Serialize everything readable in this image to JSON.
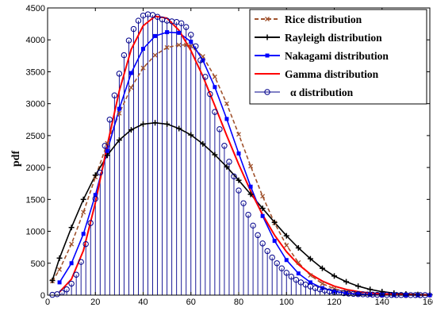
{
  "chart_data": {
    "type": "line",
    "title": "",
    "xlabel": "",
    "ylabel": "pdf",
    "xlim": [
      0,
      160
    ],
    "ylim": [
      0,
      4500
    ],
    "x_ticks": [
      0,
      20,
      40,
      60,
      80,
      100,
      120,
      140,
      160
    ],
    "y_ticks": [
      0,
      500,
      1000,
      1500,
      2000,
      2500,
      3000,
      3500,
      4000,
      4500
    ],
    "grid": false,
    "legend_position": "top-right",
    "series": [
      {
        "name": "Rice distribution",
        "color": "#a0522d",
        "style": "dashed",
        "marker": "x",
        "x": [
          2,
          5,
          10,
          15,
          20,
          25,
          30,
          35,
          40,
          45,
          50,
          55,
          58,
          60,
          65,
          70,
          75,
          80,
          85,
          90,
          95,
          100,
          105,
          110,
          115,
          120,
          125,
          130,
          135,
          140,
          145,
          150,
          155,
          160
        ],
        "y": [
          220,
          400,
          800,
          1300,
          1850,
          2380,
          2850,
          3250,
          3560,
          3760,
          3880,
          3920,
          3920,
          3900,
          3740,
          3420,
          3000,
          2520,
          2020,
          1550,
          1130,
          780,
          510,
          310,
          180,
          100,
          55,
          30,
          15,
          8,
          4,
          2,
          1,
          0
        ]
      },
      {
        "name": "Rayleigh distribution",
        "color": "#000000",
        "style": "solid",
        "marker": "+",
        "x": [
          2,
          5,
          10,
          15,
          20,
          25,
          30,
          35,
          40,
          45,
          50,
          55,
          60,
          65,
          70,
          75,
          80,
          85,
          90,
          95,
          100,
          105,
          110,
          115,
          120,
          125,
          130,
          135,
          140,
          145,
          150,
          155,
          160
        ],
        "y": [
          230,
          580,
          1060,
          1500,
          1880,
          2190,
          2430,
          2590,
          2680,
          2700,
          2680,
          2610,
          2510,
          2370,
          2200,
          2010,
          1800,
          1580,
          1360,
          1140,
          930,
          740,
          570,
          420,
          300,
          210,
          140,
          90,
          55,
          32,
          18,
          10,
          5
        ]
      },
      {
        "name": "Nakagami distribution",
        "color": "#0000ff",
        "style": "solid",
        "marker": "square",
        "x": [
          5,
          10,
          15,
          20,
          25,
          30,
          35,
          40,
          45,
          50,
          55,
          60,
          65,
          70,
          75,
          80,
          85,
          90,
          95,
          100,
          105,
          110,
          115,
          120,
          125,
          130,
          135,
          140,
          145,
          150,
          155,
          160
        ],
        "y": [
          200,
          500,
          960,
          1570,
          2260,
          2920,
          3480,
          3860,
          4060,
          4120,
          4110,
          3970,
          3680,
          3260,
          2760,
          2220,
          1700,
          1240,
          850,
          550,
          340,
          200,
          110,
          60,
          30,
          15,
          8,
          4,
          2,
          1,
          0,
          0
        ]
      },
      {
        "name": "Gamma distribution",
        "color": "#ff0000",
        "style": "solid",
        "marker": "none",
        "x": [
          5,
          10,
          15,
          20,
          25,
          30,
          35,
          40,
          45,
          50,
          55,
          60,
          65,
          70,
          75,
          80,
          85,
          90,
          95,
          100,
          105,
          110,
          115,
          120,
          125,
          130,
          135,
          140,
          145,
          150,
          155,
          160
        ],
        "y": [
          50,
          250,
          700,
          1450,
          2350,
          3200,
          3850,
          4220,
          4370,
          4340,
          4150,
          3830,
          3430,
          2970,
          2500,
          2050,
          1630,
          1260,
          940,
          680,
          480,
          330,
          220,
          140,
          90,
          55,
          33,
          20,
          12,
          7,
          4,
          2
        ]
      },
      {
        "name": "α distribution",
        "color": "#00008b",
        "style": "stem",
        "marker": "o",
        "x": [
          2,
          4,
          6,
          8,
          10,
          12,
          14,
          16,
          18,
          20,
          22,
          24,
          26,
          28,
          30,
          32,
          34,
          36,
          38,
          40,
          42,
          44,
          46,
          48,
          50,
          52,
          54,
          56,
          58,
          60,
          62,
          64,
          66,
          68,
          70,
          72,
          74,
          76,
          78,
          80,
          82,
          84,
          86,
          88,
          90,
          92,
          94,
          96,
          98,
          100,
          102,
          104,
          106,
          108,
          110,
          112,
          114,
          116,
          118,
          120,
          122,
          124,
          126,
          128,
          130,
          132,
          134,
          136,
          138,
          140,
          142,
          144,
          146,
          148,
          150,
          152,
          154,
          156,
          158
        ],
        "y": [
          5,
          15,
          40,
          90,
          180,
          320,
          520,
          800,
          1130,
          1510,
          1920,
          2340,
          2750,
          3130,
          3470,
          3760,
          3990,
          4170,
          4300,
          4380,
          4400,
          4390,
          4360,
          4320,
          4300,
          4290,
          4280,
          4260,
          4200,
          4080,
          3900,
          3680,
          3420,
          3150,
          2870,
          2600,
          2340,
          2090,
          1860,
          1640,
          1440,
          1260,
          1090,
          940,
          810,
          690,
          590,
          500,
          420,
          350,
          290,
          240,
          200,
          165,
          135,
          110,
          90,
          73,
          59,
          48,
          38,
          31,
          25,
          20,
          16,
          13,
          10,
          8,
          6,
          5,
          4,
          3,
          2,
          2,
          1,
          1,
          1,
          0,
          0
        ]
      }
    ]
  }
}
